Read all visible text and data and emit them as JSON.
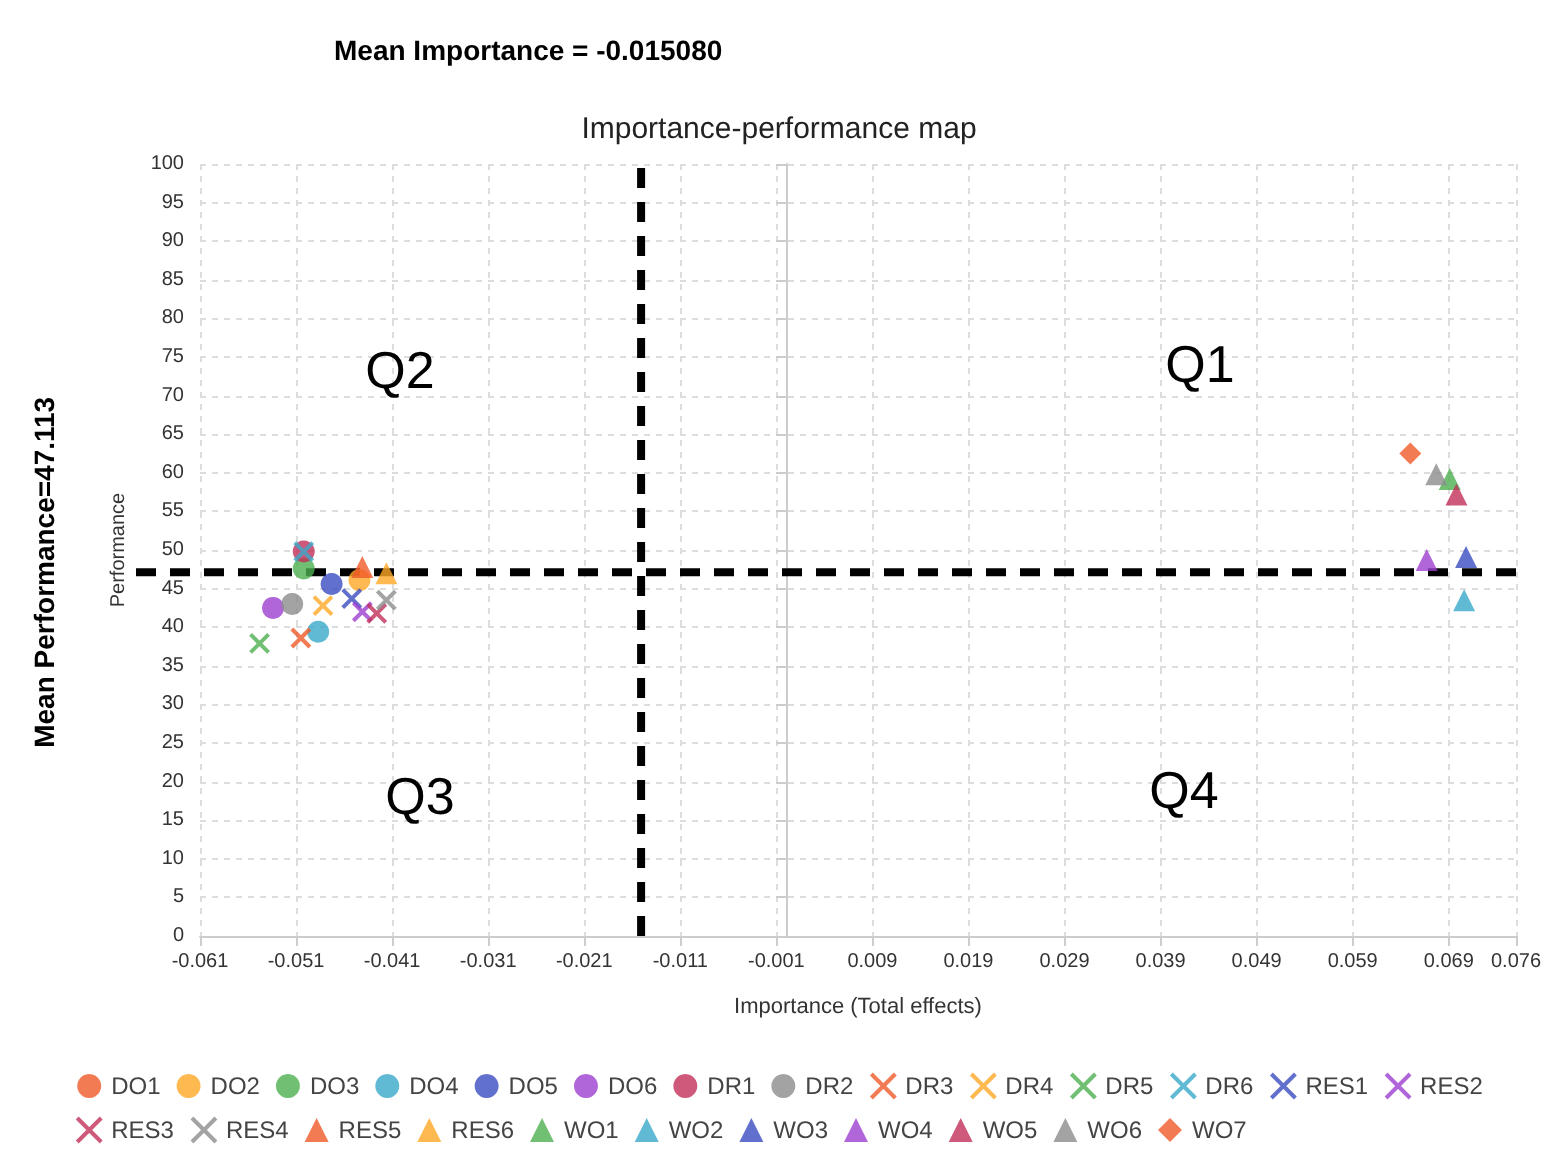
{
  "chart_data": {
    "type": "scatter",
    "title": "Mean Importance = -0.015080",
    "subtitle": "Importance-performance map",
    "xlabel": "Importance (Total effects)",
    "ylabel": "Performance",
    "xlim": [
      -0.061,
      0.076
    ],
    "xticks": [
      -0.061,
      -0.051,
      -0.041,
      -0.031,
      -0.021,
      -0.011,
      -0.001,
      0.009,
      0.019,
      0.029,
      0.039,
      0.049,
      0.059,
      0.069,
      0.076
    ],
    "ylim": [
      0,
      100
    ],
    "yticks": [
      0,
      5,
      10,
      15,
      20,
      25,
      30,
      35,
      40,
      45,
      50,
      55,
      60,
      65,
      70,
      75,
      80,
      85,
      90,
      95,
      100
    ],
    "grid": true,
    "legend": "bottom",
    "ref_lines": [
      {
        "axis": "x",
        "value": -0.01508,
        "color": "#000000",
        "line_style": "dashed"
      },
      {
        "axis": "y",
        "value": 47.113,
        "label": "Mean Performance=47.113",
        "color": "#000000",
        "line_style": "dashed"
      }
    ],
    "annotations": [
      "Q1",
      "Q2",
      "Q3",
      "Q4"
    ],
    "series": [
      {
        "name": "DO1",
        "color": "#f05a28",
        "marker": "circle",
        "x": [
          null
        ],
        "values": [
          null
        ]
      },
      {
        "name": "DO2",
        "color": "#ffa726",
        "marker": "circle",
        "x": [
          -0.0444
        ],
        "values": [
          46.1
        ]
      },
      {
        "name": "DO3",
        "color": "#4caf50",
        "marker": "circle",
        "x": [
          -0.0502
        ],
        "values": [
          47.6
        ]
      },
      {
        "name": "DO4",
        "color": "#3aa9c9",
        "marker": "circle",
        "x": [
          -0.0487
        ],
        "values": [
          39.4
        ]
      },
      {
        "name": "DO5",
        "color": "#3b4cc0",
        "marker": "circle",
        "x": [
          -0.0473
        ],
        "values": [
          45.6
        ]
      },
      {
        "name": "DO6",
        "color": "#9c3fd0",
        "marker": "circle",
        "x": [
          -0.0534
        ],
        "values": [
          42.5
        ]
      },
      {
        "name": "DR1",
        "color": "#c2305a",
        "marker": "circle",
        "x": [
          -0.0502
        ],
        "values": [
          49.8
        ]
      },
      {
        "name": "DR2",
        "color": "#8c8c8c",
        "marker": "circle",
        "x": [
          -0.0514
        ],
        "values": [
          43.0
        ]
      },
      {
        "name": "DR3",
        "color": "#f05a28",
        "marker": "cross",
        "x": [
          -0.0505
        ],
        "values": [
          38.6
        ]
      },
      {
        "name": "DR4",
        "color": "#ffa726",
        "marker": "cross",
        "x": [
          -0.0482
        ],
        "values": [
          42.8
        ]
      },
      {
        "name": "DR5",
        "color": "#4caf50",
        "marker": "cross",
        "x": [
          -0.0548
        ],
        "values": [
          37.9
        ]
      },
      {
        "name": "DR6",
        "color": "#3aa9c9",
        "marker": "cross",
        "x": [
          -0.0502
        ],
        "values": [
          49.8
        ]
      },
      {
        "name": "RES1",
        "color": "#3b4cc0",
        "marker": "cross",
        "x": [
          -0.0452
        ],
        "values": [
          43.7
        ]
      },
      {
        "name": "RES2",
        "color": "#9c3fd0",
        "marker": "cross",
        "x": [
          -0.0441
        ],
        "values": [
          42.0
        ]
      },
      {
        "name": "RES3",
        "color": "#c2305a",
        "marker": "cross",
        "x": [
          -0.0426
        ],
        "values": [
          41.8
        ]
      },
      {
        "name": "RES4",
        "color": "#8c8c8c",
        "marker": "cross",
        "x": [
          -0.0416
        ],
        "values": [
          43.5
        ]
      },
      {
        "name": "RES5",
        "color": "#f05a28",
        "marker": "triangle",
        "x": [
          -0.0441
        ],
        "values": [
          47.8
        ]
      },
      {
        "name": "RES6",
        "color": "#ffa726",
        "marker": "triangle",
        "x": [
          -0.0416
        ],
        "values": [
          47.0
        ]
      },
      {
        "name": "WO1",
        "color": "#4caf50",
        "marker": "triangle",
        "x": [
          0.0691
        ],
        "values": [
          59.2
        ]
      },
      {
        "name": "WO2",
        "color": "#3aa9c9",
        "marker": "triangle",
        "x": [
          0.0706
        ],
        "values": [
          43.5
        ]
      },
      {
        "name": "WO3",
        "color": "#3b4cc0",
        "marker": "triangle",
        "x": [
          0.0708
        ],
        "values": [
          49.1
        ]
      },
      {
        "name": "WO4",
        "color": "#9c3fd0",
        "marker": "triangle",
        "x": [
          0.0667
        ],
        "values": [
          48.7
        ]
      },
      {
        "name": "WO5",
        "color": "#c2305a",
        "marker": "triangle",
        "x": [
          0.0698
        ],
        "values": [
          57.2
        ]
      },
      {
        "name": "WO6",
        "color": "#8c8c8c",
        "marker": "triangle",
        "x": [
          0.0677
        ],
        "values": [
          59.8
        ]
      },
      {
        "name": "WO7",
        "color": "#f05a28",
        "marker": "diamond",
        "x": [
          0.065
        ],
        "values": [
          62.5
        ]
      }
    ]
  }
}
